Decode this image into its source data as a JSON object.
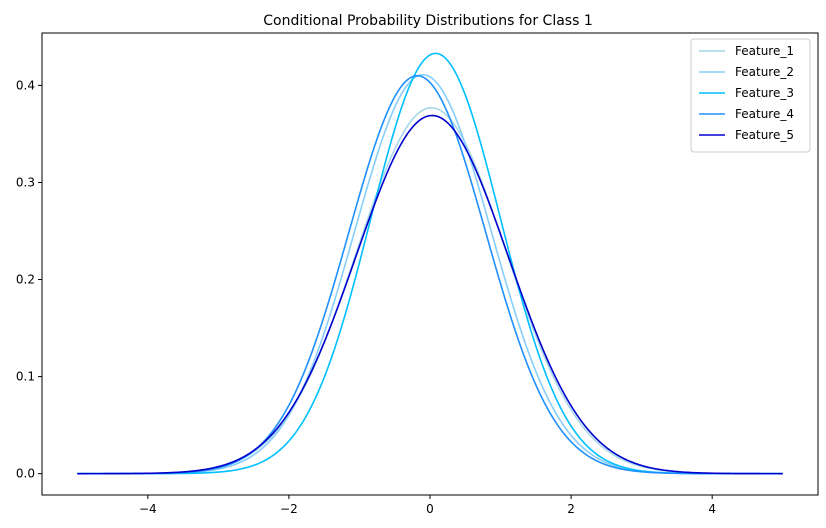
{
  "chart_data": {
    "type": "line",
    "title": "Conditional Probability Distributions for Class 1",
    "xlabel": "",
    "ylabel": "",
    "xlim": [
      -5.5,
      5.5
    ],
    "ylim": [
      -0.022,
      0.454
    ],
    "x_domain": [
      -5,
      5
    ],
    "xticks": [
      -4,
      -2,
      0,
      2,
      4
    ],
    "xtick_labels": [
      "−4",
      "−2",
      "0",
      "2",
      "4"
    ],
    "yticks": [
      0.0,
      0.1,
      0.2,
      0.3,
      0.4
    ],
    "ytick_labels": [
      "0.0",
      "0.1",
      "0.2",
      "0.3",
      "0.4"
    ],
    "grid": false,
    "legend_position": "top-right",
    "series": [
      {
        "name": "Feature_1",
        "color": "#a6d8ea",
        "mean": 0.02,
        "std": 1.06,
        "peak": 0.377
      },
      {
        "name": "Feature_2",
        "color": "#87cefa",
        "mean": -0.1,
        "std": 0.97,
        "peak": 0.411
      },
      {
        "name": "Feature_3",
        "color": "#00bfff",
        "mean": 0.08,
        "std": 0.92,
        "peak": 0.433
      },
      {
        "name": "Feature_4",
        "color": "#1e90ff",
        "mean": -0.18,
        "std": 0.97,
        "peak": 0.41
      },
      {
        "name": "Feature_5",
        "color": "#0000cd",
        "mean": 0.03,
        "std": 1.08,
        "peak": 0.369
      }
    ]
  }
}
